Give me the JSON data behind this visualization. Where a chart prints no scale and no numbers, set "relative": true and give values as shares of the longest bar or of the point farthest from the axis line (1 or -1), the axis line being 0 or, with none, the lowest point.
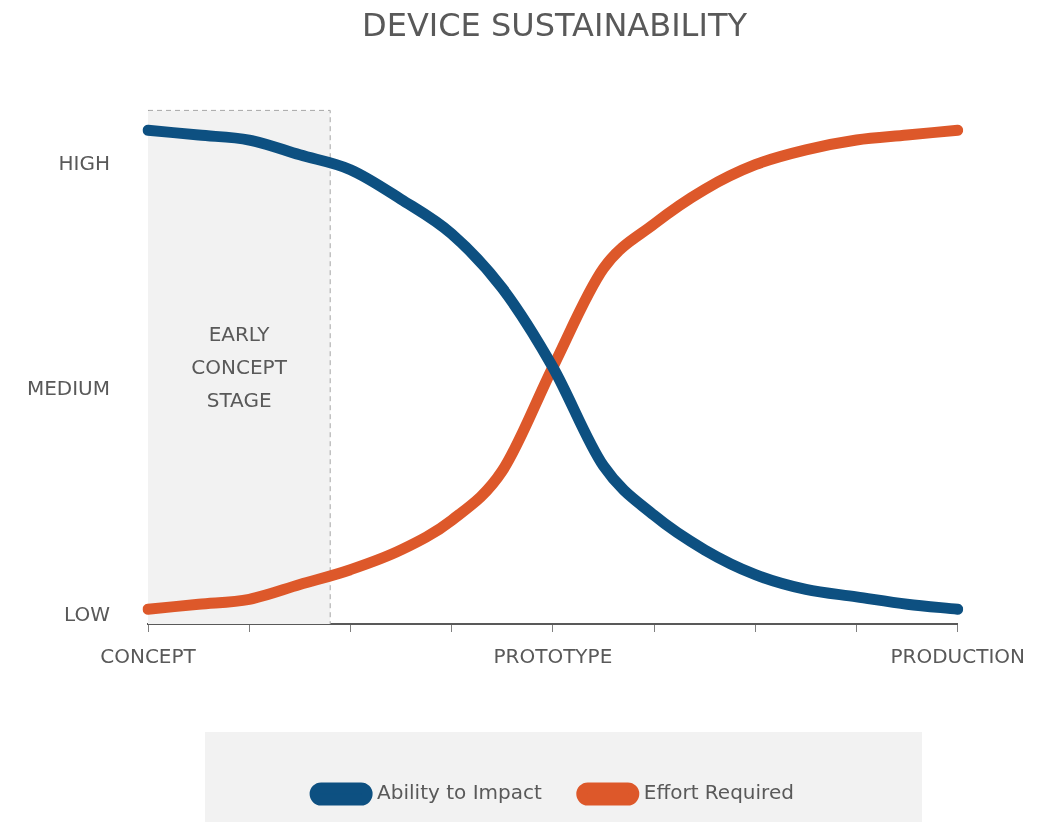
{
  "chart_data": {
    "type": "line",
    "title": "DEVICE SUSTAINABILITY",
    "relative": true,
    "categories": [
      "CONCEPT",
      null,
      null,
      null,
      null,
      null,
      null,
      null,
      "PROTOTYPE",
      null,
      null,
      null,
      null,
      null,
      null,
      null,
      "PRODUCTION"
    ],
    "series": [
      {
        "name": "Ability to Impact",
        "color": "#0d5081",
        "values": [
          1.0,
          0.99,
          0.98,
          0.95,
          0.92,
          0.86,
          0.79,
          0.68,
          0.52,
          0.32,
          0.22,
          0.15,
          0.1,
          0.07,
          0.055,
          0.04,
          0.03
        ]
      },
      {
        "name": "Effort Required",
        "color": "#dd582a",
        "values": [
          0.03,
          0.04,
          0.05,
          0.08,
          0.11,
          0.15,
          0.21,
          0.31,
          0.52,
          0.72,
          0.81,
          0.88,
          0.93,
          0.96,
          0.98,
          0.99,
          1.0
        ]
      }
    ],
    "annotations": [
      "EARLY CONCEPT STAGE",
      "LOW",
      "MEDIUM",
      "HIGH"
    ],
    "legend": "bottom",
    "marker": "none",
    "line_style": "solid",
    "grid": false
  }
}
